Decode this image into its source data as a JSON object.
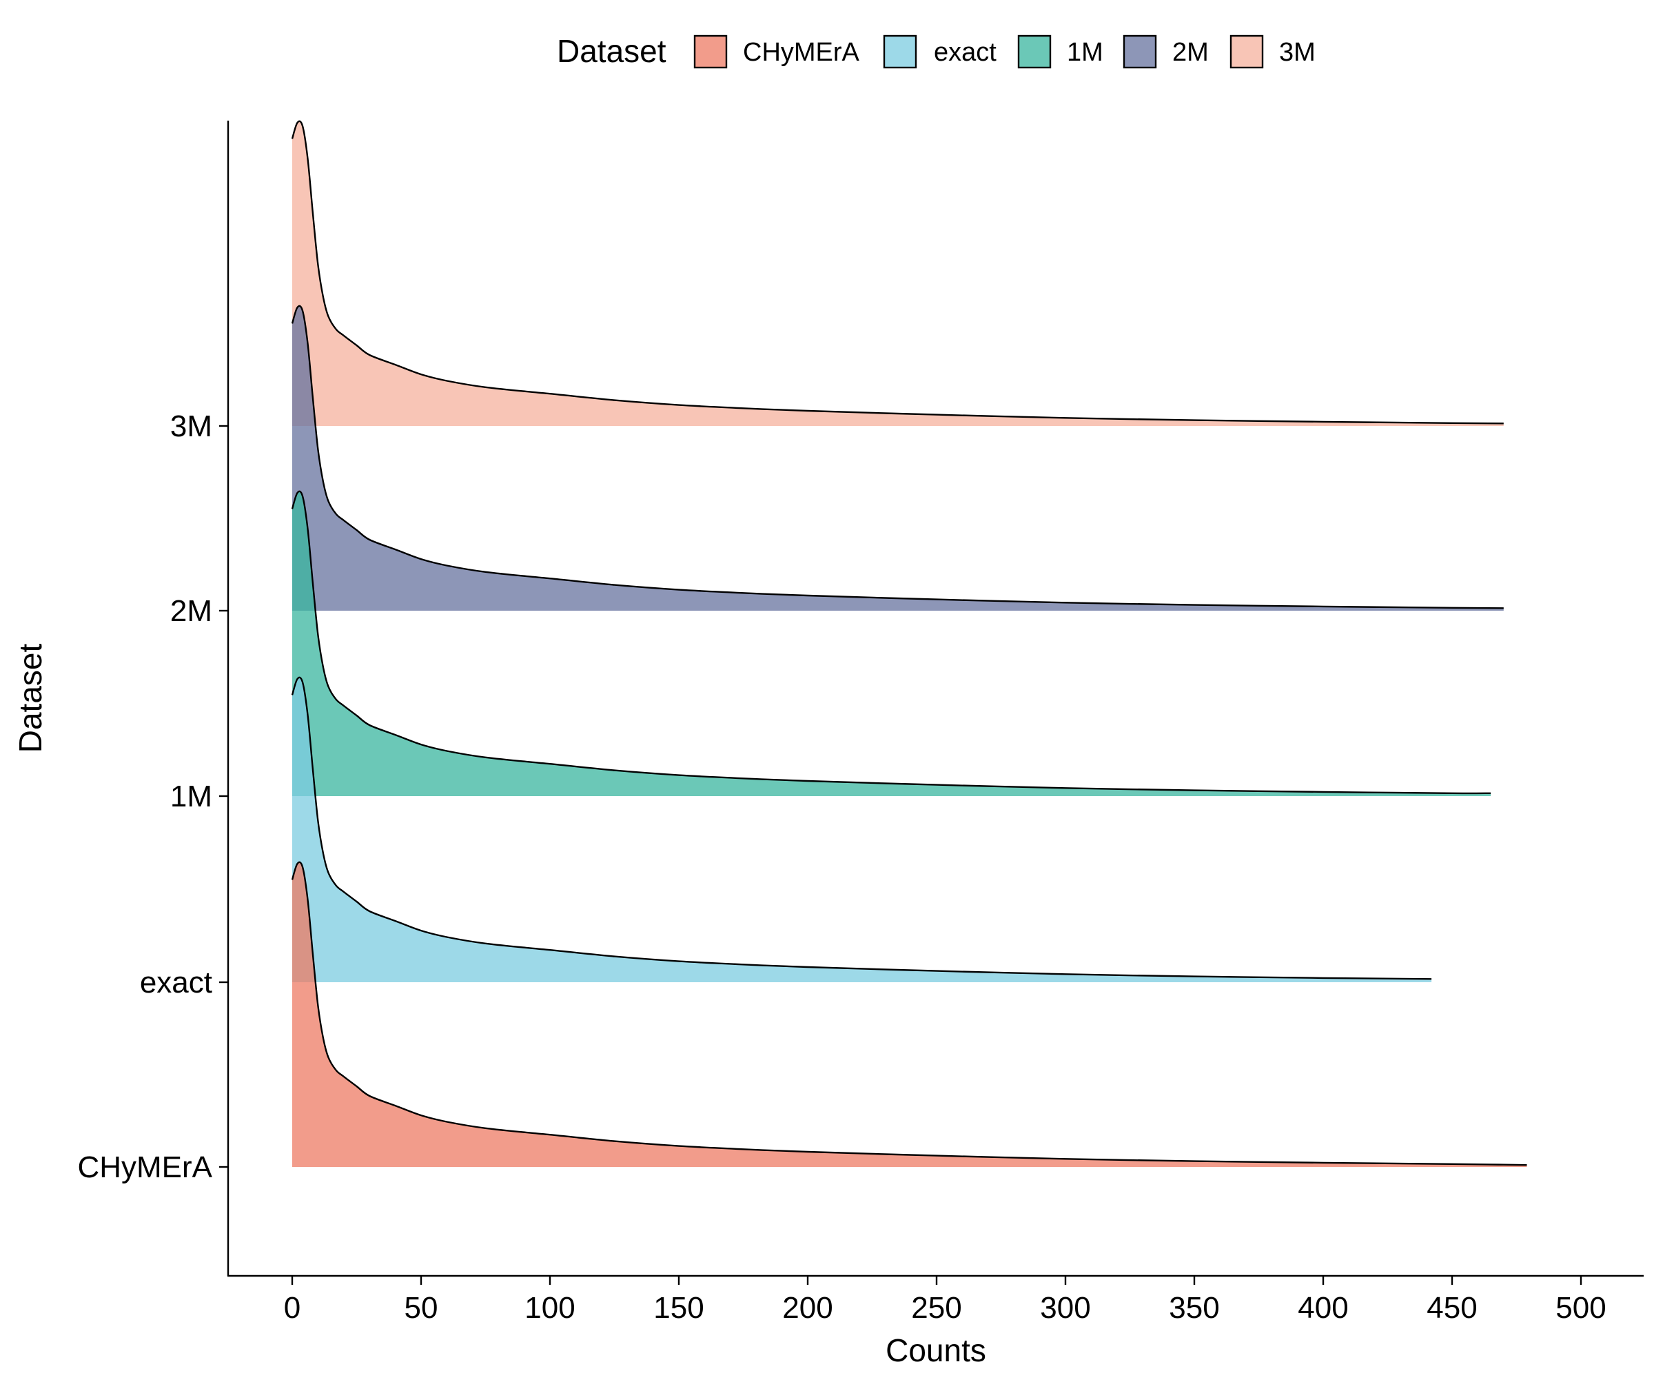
{
  "chart_data": {
    "type": "ridgeline",
    "title": "",
    "xlabel": "Counts",
    "ylabel": "Dataset",
    "xlim": [
      -25,
      522
    ],
    "x_ticks": [
      0,
      50,
      100,
      150,
      200,
      250,
      300,
      350,
      400,
      450,
      500
    ],
    "categories": [
      "CHyMErA",
      "exact",
      "1M",
      "2M",
      "3M"
    ],
    "legend": {
      "title": "Dataset",
      "position": "top",
      "entries": [
        "CHyMErA",
        "exact",
        "1M",
        "2M",
        "3M"
      ]
    },
    "grid": false,
    "fill_alpha": 0.75,
    "density_x": [
      0,
      2,
      4,
      6,
      8,
      10,
      12,
      14,
      17,
      20,
      25,
      30,
      40,
      50,
      60,
      75,
      100,
      125,
      150,
      175,
      200,
      250,
      300,
      350,
      400,
      450,
      470,
      480
    ],
    "series": [
      {
        "name": "CHyMErA",
        "color": "#ee7b64",
        "x_max": 479,
        "density": [
          0.89,
          0.94,
          0.93,
          0.83,
          0.66,
          0.5,
          0.4,
          0.34,
          0.3,
          0.28,
          0.25,
          0.22,
          0.19,
          0.16,
          0.14,
          0.12,
          0.1,
          0.08,
          0.065,
          0.055,
          0.047,
          0.035,
          0.025,
          0.018,
          0.013,
          0.009,
          0.007,
          0.006
        ]
      },
      {
        "name": "exact",
        "color": "#7ccce0",
        "x_max": 442,
        "density": [
          0.89,
          0.94,
          0.93,
          0.83,
          0.66,
          0.5,
          0.4,
          0.34,
          0.3,
          0.28,
          0.25,
          0.22,
          0.19,
          0.16,
          0.14,
          0.12,
          0.1,
          0.08,
          0.065,
          0.055,
          0.047,
          0.035,
          0.025,
          0.018,
          0.013,
          0.01,
          null,
          null
        ]
      },
      {
        "name": "1M",
        "color": "#39b59f",
        "x_max": 465,
        "density": [
          0.89,
          0.94,
          0.93,
          0.83,
          0.66,
          0.5,
          0.4,
          0.34,
          0.3,
          0.28,
          0.25,
          0.22,
          0.19,
          0.16,
          0.14,
          0.12,
          0.1,
          0.08,
          0.065,
          0.055,
          0.047,
          0.035,
          0.025,
          0.018,
          0.013,
          0.009,
          null,
          null
        ]
      },
      {
        "name": "2M",
        "color": "#67739f",
        "x_max": 470,
        "density": [
          0.89,
          0.94,
          0.93,
          0.83,
          0.66,
          0.5,
          0.4,
          0.34,
          0.3,
          0.28,
          0.25,
          0.22,
          0.19,
          0.16,
          0.14,
          0.12,
          0.1,
          0.08,
          0.065,
          0.055,
          0.047,
          0.035,
          0.025,
          0.018,
          0.013,
          0.009,
          0.008,
          null
        ]
      },
      {
        "name": "3M",
        "color": "#f6b29e",
        "x_max": 470,
        "density": [
          0.89,
          0.94,
          0.93,
          0.83,
          0.66,
          0.5,
          0.4,
          0.34,
          0.3,
          0.28,
          0.25,
          0.22,
          0.19,
          0.16,
          0.14,
          0.12,
          0.1,
          0.08,
          0.065,
          0.055,
          0.047,
          0.035,
          0.025,
          0.018,
          0.013,
          0.009,
          0.008,
          null
        ]
      }
    ]
  }
}
